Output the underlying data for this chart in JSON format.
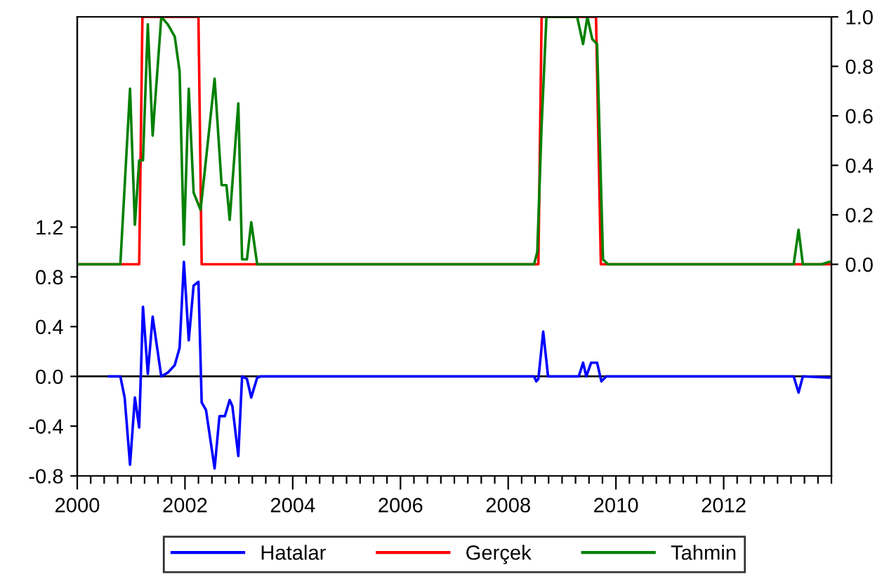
{
  "chart_data": {
    "type": "line",
    "xlim": [
      2000,
      2014
    ],
    "ylim": [
      -0.8,
      2.89
    ],
    "yticks": [
      -0.8,
      -0.4,
      {
        "value": 0,
        "label": "0.0"
      },
      0.4,
      0.8,
      1.2
    ],
    "y2lim": [
      -0.855,
      1.0
    ],
    "y2ticks": [
      {
        "value": 0,
        "label": "0.0"
      },
      0.2,
      0.4,
      0.6,
      0.8,
      {
        "value": 1,
        "label": "1.0"
      }
    ],
    "xticks": [
      {
        "value": 2000,
        "label": "2000"
      },
      {
        "value": 2000.25,
        "label": null
      },
      {
        "value": 2000.5,
        "label": null
      },
      {
        "value": 2000.75,
        "label": null
      },
      {
        "value": 2001,
        "label": null
      },
      {
        "value": 2001.25,
        "label": null
      },
      {
        "value": 2001.5,
        "label": null
      },
      {
        "value": 2001.75,
        "label": null
      },
      {
        "value": 2002,
        "label": "2002"
      },
      {
        "value": 2002.25,
        "label": null
      },
      {
        "value": 2002.5,
        "label": null
      },
      {
        "value": 2002.75,
        "label": null
      },
      {
        "value": 2003,
        "label": null
      },
      {
        "value": 2003.25,
        "label": null
      },
      {
        "value": 2003.5,
        "label": null
      },
      {
        "value": 2003.75,
        "label": null
      },
      {
        "value": 2004,
        "label": "2004"
      },
      {
        "value": 2004.25,
        "label": null
      },
      {
        "value": 2004.5,
        "label": null
      },
      {
        "value": 2004.75,
        "label": null
      },
      {
        "value": 2005,
        "label": null
      },
      {
        "value": 2005.25,
        "label": null
      },
      {
        "value": 2005.5,
        "label": null
      },
      {
        "value": 2005.75,
        "label": null
      },
      {
        "value": 2006,
        "label": "2006"
      },
      {
        "value": 2006.25,
        "label": null
      },
      {
        "value": 2006.5,
        "label": null
      },
      {
        "value": 2006.75,
        "label": null
      },
      {
        "value": 2007,
        "label": null
      },
      {
        "value": 2007.25,
        "label": null
      },
      {
        "value": 2007.5,
        "label": null
      },
      {
        "value": 2007.75,
        "label": null
      },
      {
        "value": 2008,
        "label": "2008"
      },
      {
        "value": 2008.25,
        "label": null
      },
      {
        "value": 2008.5,
        "label": null
      },
      {
        "value": 2008.75,
        "label": null
      },
      {
        "value": 2009,
        "label": null
      },
      {
        "value": 2009.25,
        "label": null
      },
      {
        "value": 2009.5,
        "label": null
      },
      {
        "value": 2009.75,
        "label": null
      },
      {
        "value": 2010,
        "label": "2010"
      },
      {
        "value": 2010.25,
        "label": null
      },
      {
        "value": 2010.5,
        "label": null
      },
      {
        "value": 2010.75,
        "label": null
      },
      {
        "value": 2011,
        "label": null
      },
      {
        "value": 2011.25,
        "label": null
      },
      {
        "value": 2011.5,
        "label": null
      },
      {
        "value": 2011.75,
        "label": null
      },
      {
        "value": 2012,
        "label": "2012"
      },
      {
        "value": 2012.25,
        "label": null
      },
      {
        "value": 2012.5,
        "label": null
      },
      {
        "value": 2012.75,
        "label": null
      },
      {
        "value": 2013,
        "label": null
      },
      {
        "value": 2013.25,
        "label": null
      },
      {
        "value": 2013.5,
        "label": null
      },
      {
        "value": 2013.75,
        "label": null
      },
      {
        "value": 2014,
        "label": null
      }
    ],
    "ref_lines": [
      {
        "axis": "y",
        "value": 0,
        "color": "#000000"
      }
    ],
    "legend": "bottom",
    "grid": false,
    "marker": "none",
    "line_style": "solid",
    "series": [
      {
        "name": "Hatalar",
        "color": "#0000ff",
        "axis": "y",
        "x": [
          2000.59,
          2000.8,
          2000.88,
          2000.98,
          2001.07,
          2001.15,
          2001.22,
          2001.31,
          2001.4,
          2001.56,
          2001.68,
          2001.81,
          2001.9,
          2001.98,
          2002.07,
          2002.16,
          2002.25,
          2002.31,
          2002.39,
          2002.55,
          2002.64,
          2002.74,
          2002.83,
          2002.88,
          2002.99,
          2003.06,
          2003.15,
          2003.23,
          2003.34,
          2003.41,
          2008.48,
          2008.52,
          2008.56,
          2008.65,
          2008.74,
          2009.31,
          2009.39,
          2009.45,
          2009.54,
          2009.65,
          2009.73,
          2009.82,
          2013.3,
          2013.39,
          2013.47,
          2013.96
        ],
        "values": [
          0,
          0,
          -0.17,
          -0.71,
          -0.17,
          -0.41,
          0.56,
          0.02,
          0.48,
          0,
          0.03,
          0.09,
          0.23,
          0.92,
          0.29,
          0.73,
          0.76,
          -0.21,
          -0.27,
          -0.74,
          -0.32,
          -0.32,
          -0.19,
          -0.24,
          -0.64,
          0,
          -0.02,
          -0.17,
          -0.01,
          0,
          0,
          -0.04,
          -0.02,
          0.36,
          0,
          0,
          0.11,
          0,
          0.11,
          0.11,
          -0.04,
          0,
          0,
          -0.13,
          0,
          -0.01
        ]
      },
      {
        "name": "Gerçek",
        "color": "#ff0000",
        "axis": "y2",
        "x": [
          2000,
          2001.15,
          2001.21,
          2002.25,
          2002.31,
          2008.56,
          2008.62,
          2009.63,
          2009.72,
          2014
        ],
        "values": [
          0,
          0,
          1,
          1,
          0,
          0,
          1,
          1,
          0,
          0
        ]
      },
      {
        "name": "Tahmin",
        "color": "#008000",
        "axis": "y2",
        "x": [
          2000,
          2000.8,
          2000.98,
          2001.07,
          2001.15,
          2001.22,
          2001.31,
          2001.4,
          2001.56,
          2001.68,
          2001.81,
          2001.9,
          2001.98,
          2002.07,
          2002.16,
          2002.29,
          2002.55,
          2002.68,
          2002.77,
          2002.83,
          2002.99,
          2003.06,
          2003.15,
          2003.23,
          2003.34,
          2008.48,
          2008.54,
          2008.62,
          2008.71,
          2009.28,
          2009.39,
          2009.47,
          2009.56,
          2009.65,
          2009.76,
          2009.85,
          2013.3,
          2013.39,
          2013.47,
          2013.82,
          2013.96
        ],
        "values": [
          0,
          0,
          0.71,
          0.16,
          0.42,
          0.42,
          0.97,
          0.52,
          1.0,
          0.97,
          0.92,
          0.78,
          0.08,
          0.71,
          0.29,
          0.22,
          0.75,
          0.32,
          0.32,
          0.18,
          0.65,
          0.02,
          0.02,
          0.17,
          0,
          0,
          0.05,
          0.56,
          1.0,
          1.0,
          0.89,
          1.0,
          0.91,
          0.89,
          0.02,
          0,
          0,
          0.14,
          0,
          0,
          0.01
        ]
      }
    ]
  }
}
